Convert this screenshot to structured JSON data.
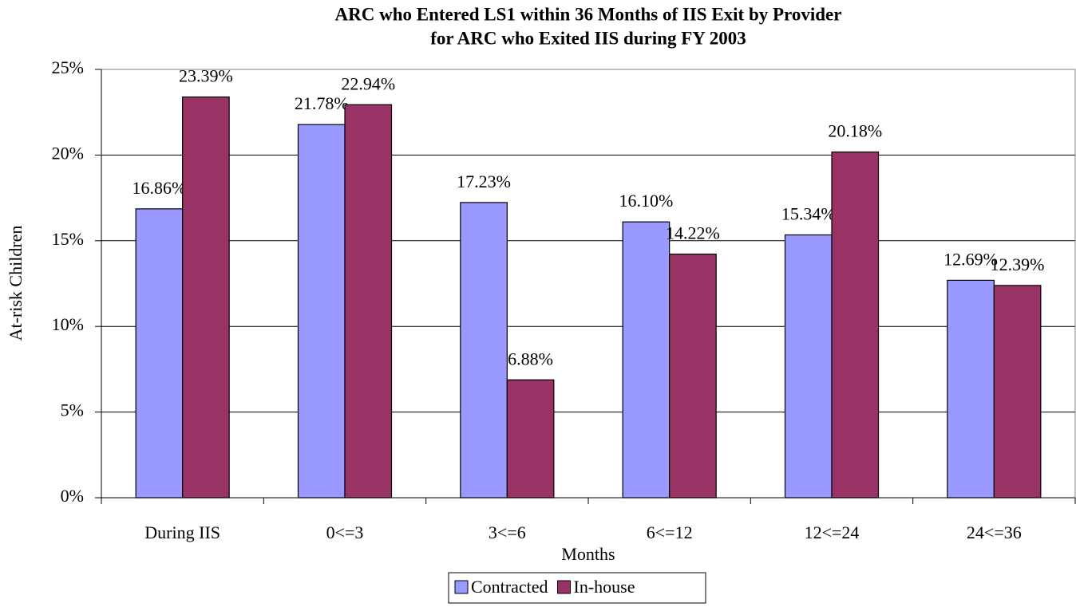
{
  "chart_data": {
    "type": "bar",
    "title": [
      "ARC who Entered LS1 within 36 Months of IIS Exit by Provider",
      "for ARC who Exited IIS during FY 2003"
    ],
    "x_label": "Months",
    "y_label": "At-risk Children",
    "categories": [
      "During IIS",
      "0<=3",
      "3<=6",
      "6<=12",
      "12<=24",
      "24<=36"
    ],
    "series": [
      {
        "name": "Contracted",
        "color": "#9999ff",
        "values": [
          16.86,
          21.78,
          17.23,
          16.1,
          15.34,
          12.69
        ],
        "value_labels": [
          "16.86%",
          "21.78%",
          "17.23%",
          "16.10%",
          "15.34%",
          "12.69%"
        ]
      },
      {
        "name": "In-house",
        "color": "#993366",
        "values": [
          23.39,
          22.94,
          6.88,
          14.22,
          20.18,
          12.39
        ],
        "value_labels": [
          "23.39%",
          "22.94%",
          "6.88%",
          "14.22%",
          "20.18%",
          "12.39%"
        ]
      }
    ],
    "ylim": [
      0,
      25
    ],
    "yticks": [
      {
        "value": 0,
        "label": "0%"
      },
      {
        "value": 5,
        "label": "5%"
      },
      {
        "value": 10,
        "label": "10%"
      },
      {
        "value": 15,
        "label": "15%"
      },
      {
        "value": 20,
        "label": "20%"
      },
      {
        "value": 25,
        "label": "25%"
      }
    ],
    "grid": true,
    "legend": "bottom"
  }
}
